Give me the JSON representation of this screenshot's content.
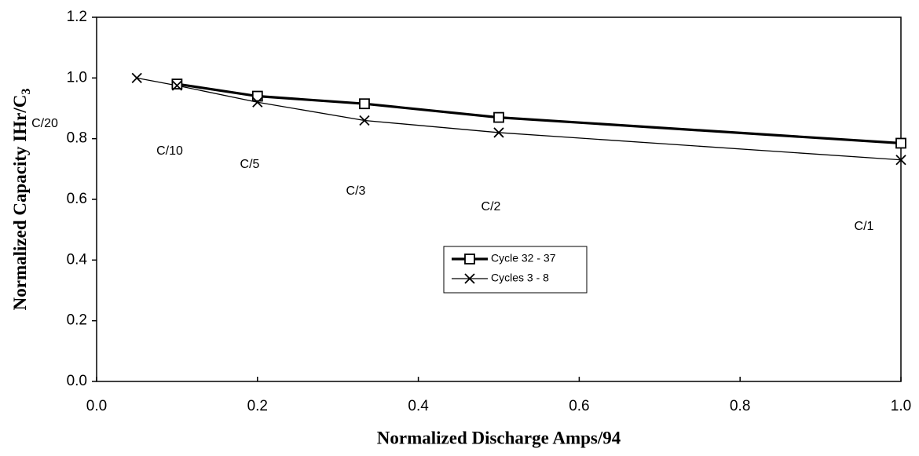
{
  "chart_data": {
    "type": "line",
    "xlabel": "Normalized Discharge Amps/94",
    "ylabel": "Normalized Capacity IHr/C",
    "ylabel_subscript": "3",
    "xlim": [
      0,
      1.0
    ],
    "ylim": [
      0,
      1.2
    ],
    "xticks": [
      {
        "value": 0,
        "label": "0.0"
      },
      0.2,
      0.4,
      0.6,
      0.8,
      {
        "value": 1.0,
        "label": "1.0"
      }
    ],
    "yticks": [
      {
        "value": 0,
        "label": "0.0"
      },
      0.2,
      0.4,
      0.6,
      0.8,
      {
        "value": 1.0,
        "label": "1.0"
      },
      1.2
    ],
    "grid": false,
    "legend": "center",
    "series": [
      {
        "name": "Cycle 32 - 37",
        "color": "#000000",
        "marker": "square",
        "x": [
          0.1,
          0.2,
          0.333,
          0.5,
          1.0
        ],
        "values": [
          0.98,
          0.94,
          0.915,
          0.87,
          0.785
        ]
      },
      {
        "name": "Cycles 3 - 8",
        "color": "#000000",
        "marker": "x",
        "x": [
          0.05,
          0.1,
          0.2,
          0.333,
          0.5,
          1.0
        ],
        "values": [
          1.0,
          0.975,
          0.92,
          0.86,
          0.82,
          0.73
        ]
      }
    ],
    "annotations": [
      "C/20",
      "C/10",
      "C/5",
      "C/3",
      "C/2",
      "C/1"
    ]
  }
}
